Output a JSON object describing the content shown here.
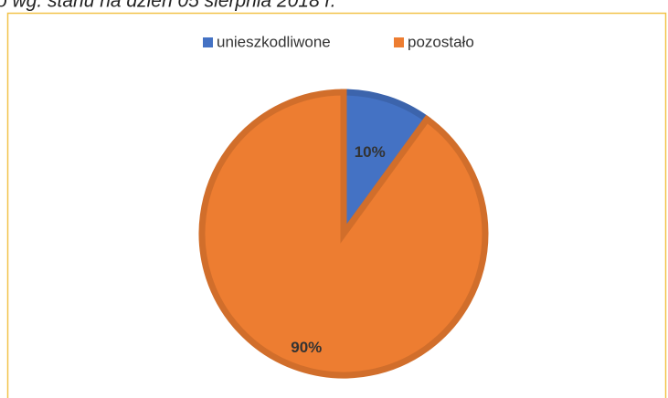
{
  "chart_data": {
    "type": "pie",
    "title": "o wg. stanu na dzień 05 sierpnia 2018 r.",
    "categories": [
      "unieszkodliwone",
      "pozostało"
    ],
    "values": [
      10,
      90
    ],
    "value_labels": [
      "10%",
      "90%"
    ],
    "colors": [
      "#4472c4",
      "#ed7d31"
    ],
    "legend": "top"
  }
}
